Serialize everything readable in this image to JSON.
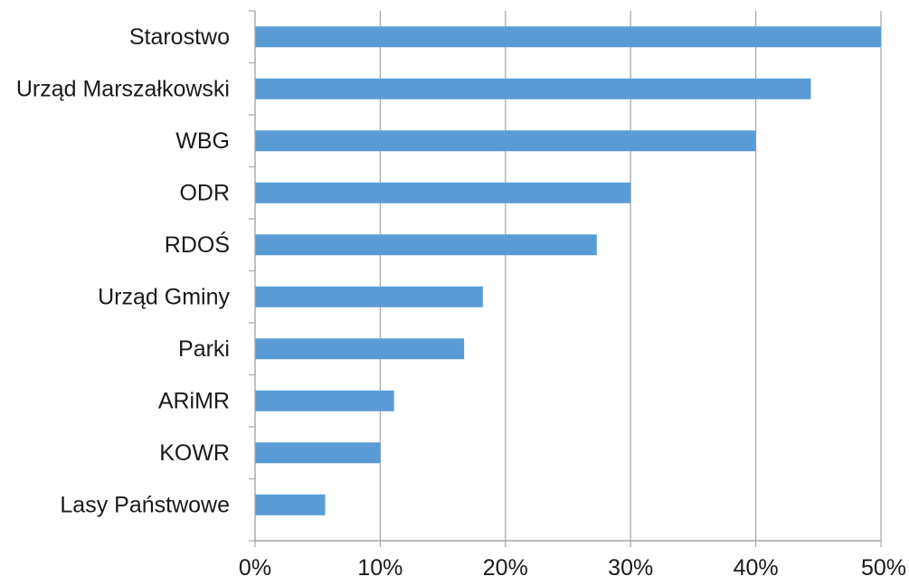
{
  "chart_data": {
    "type": "bar",
    "orientation": "horizontal",
    "categories": [
      "Starostwo",
      "Urząd Marszałkowski",
      "WBG",
      "ODR",
      "RDOŚ",
      "Urząd Gminy",
      "Parki",
      "ARiMR",
      "KOWR",
      "Lasy Państwowe"
    ],
    "values": [
      50,
      44.4,
      40,
      30,
      27.3,
      18.2,
      16.7,
      11.1,
      10,
      5.6
    ],
    "value_unit": "%",
    "xlim": [
      0,
      50
    ],
    "x_ticks": [
      0,
      10,
      20,
      30,
      40,
      50
    ],
    "x_tick_labels": [
      "0%",
      "10%",
      "20%",
      "30%",
      "40%",
      "50%"
    ],
    "title": "",
    "xlabel": "",
    "ylabel": "",
    "grid": "vertical",
    "legend": "none",
    "bar_color": "#5b9bd5",
    "grid_color": "#a6a6a6"
  }
}
